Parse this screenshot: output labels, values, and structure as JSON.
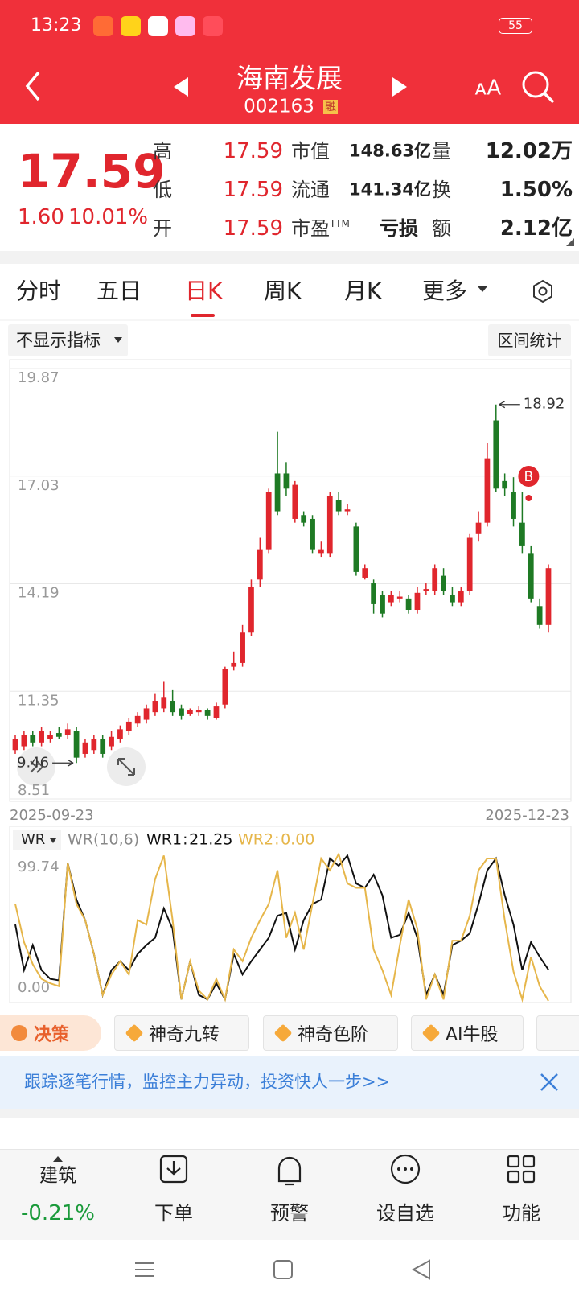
{
  "status_bar": {
    "time": "13:23",
    "battery": "55"
  },
  "header": {
    "title": "海南发展",
    "code": "002163",
    "badge": "融"
  },
  "quote": {
    "price": "17.59",
    "change": "1.60",
    "change_pct": "10.01%",
    "fields": [
      {
        "label": "高",
        "value": "17.59"
      },
      {
        "label": "低",
        "value": "17.59"
      },
      {
        "label": "开",
        "value": "17.59"
      },
      {
        "label": "市值",
        "value": "148.63亿"
      },
      {
        "label": "流通",
        "value": "141.34亿"
      },
      {
        "label": "市盈",
        "sup": "TTM",
        "value": "亏损"
      },
      {
        "label": "量",
        "value": "12.02万"
      },
      {
        "label": "换",
        "value": "1.50%"
      },
      {
        "label": "额",
        "value": "2.12亿"
      }
    ]
  },
  "tabs": [
    "分时",
    "五日",
    "日K",
    "周K",
    "月K",
    "更多"
  ],
  "active_tab": 2,
  "indicator_selector": "不显示指标",
  "range_stats": "区间统计",
  "chart_data": [
    {
      "type": "candlestick",
      "categories": [
        "2025-09-23",
        null,
        null,
        null,
        null,
        null,
        null,
        null,
        null,
        null,
        null,
        null,
        null,
        null,
        null,
        null,
        null,
        null,
        null,
        null,
        null,
        null,
        null,
        null,
        null,
        null,
        null,
        null,
        null,
        null,
        null,
        null,
        null,
        null,
        null,
        null,
        null,
        null,
        null,
        null,
        null,
        null,
        null,
        null,
        null,
        null,
        null,
        null,
        null,
        null,
        null,
        null,
        null,
        null,
        null,
        null,
        null,
        null,
        null,
        null,
        null,
        "2025-12-23"
      ],
      "open": [
        9.8,
        9.9,
        10.2,
        10.0,
        10.1,
        10.25,
        10.2,
        10.3,
        9.7,
        9.8,
        10.1,
        9.9,
        10.1,
        10.3,
        10.5,
        10.6,
        10.8,
        10.9,
        11.1,
        10.9,
        10.75,
        10.8,
        10.85,
        10.65,
        11.0,
        12.0,
        12.1,
        12.9,
        14.3,
        15.1,
        17.1,
        17.1,
        15.9,
        16.0,
        15.9,
        15.0,
        15.0,
        16.4,
        16.1,
        15.7,
        14.35,
        14.2,
        13.9,
        13.7,
        13.8,
        13.8,
        13.5,
        14.0,
        14.0,
        14.4,
        13.9,
        13.7,
        14.0,
        15.5,
        15.8,
        18.5,
        16.9,
        16.6,
        15.8,
        15.0,
        13.6,
        13.1
      ],
      "high": [
        10.2,
        10.3,
        10.3,
        10.4,
        10.3,
        10.4,
        10.5,
        10.4,
        10.1,
        10.2,
        10.2,
        10.3,
        10.45,
        10.65,
        10.8,
        11.0,
        11.3,
        11.6,
        11.4,
        11.0,
        10.9,
        10.95,
        10.9,
        11.05,
        12.0,
        12.4,
        13.1,
        14.3,
        15.4,
        16.7,
        18.2,
        17.4,
        16.9,
        16.1,
        16.0,
        15.3,
        16.6,
        16.6,
        16.3,
        15.8,
        14.7,
        14.3,
        14.0,
        14.0,
        14.0,
        13.9,
        14.1,
        14.2,
        14.7,
        14.6,
        14.1,
        14.1,
        15.5,
        16.1,
        17.9,
        18.92,
        17.1,
        17.0,
        16.6,
        15.2,
        13.8,
        14.7
      ],
      "low": [
        9.7,
        9.8,
        9.9,
        9.9,
        10.0,
        10.1,
        10.1,
        9.46,
        9.6,
        9.7,
        9.6,
        9.8,
        10.0,
        10.2,
        10.4,
        10.5,
        10.7,
        10.8,
        10.7,
        10.6,
        10.7,
        10.7,
        10.6,
        10.6,
        10.9,
        11.9,
        12.0,
        12.8,
        14.1,
        15.0,
        16.0,
        16.5,
        15.8,
        15.7,
        15.0,
        14.9,
        14.9,
        16.0,
        16.0,
        14.4,
        14.3,
        13.4,
        13.3,
        13.6,
        13.7,
        13.4,
        13.4,
        13.9,
        13.9,
        13.9,
        13.6,
        13.6,
        13.9,
        15.3,
        15.7,
        16.6,
        16.5,
        15.7,
        15.0,
        13.7,
        13.0,
        12.9
      ],
      "close": [
        10.1,
        10.2,
        10.0,
        10.3,
        10.2,
        10.15,
        10.35,
        9.6,
        10.0,
        10.1,
        9.7,
        10.15,
        10.35,
        10.55,
        10.7,
        10.9,
        11.1,
        11.2,
        10.8,
        10.7,
        10.85,
        10.85,
        10.7,
        10.95,
        11.95,
        12.1,
        12.9,
        14.1,
        15.1,
        16.6,
        16.1,
        16.7,
        16.8,
        15.8,
        15.1,
        15.1,
        16.5,
        16.1,
        16.15,
        14.5,
        14.6,
        13.65,
        13.4,
        13.9,
        13.85,
        13.5,
        13.95,
        14.05,
        14.6,
        14.0,
        13.7,
        14.0,
        15.4,
        15.8,
        17.5,
        16.7,
        16.7,
        15.9,
        15.2,
        13.8,
        13.1,
        14.6
      ],
      "up_color": "#e0262d",
      "down_color": "#1e7a24",
      "ylim": [
        8.51,
        19.87
      ],
      "yticks": [
        19.87,
        17.03,
        14.19,
        11.35,
        8.51
      ],
      "max_label": "18.92",
      "min_label": "9.46",
      "signal": {
        "text": "B",
        "index": 58
      }
    },
    {
      "type": "line",
      "title": "WR",
      "subtitle": "WR(10,6)",
      "ylim": [
        0,
        99.74
      ],
      "yticks": [
        99.74,
        {
          "value": 0,
          "label": "0.00"
        }
      ],
      "series": [
        {
          "name": "WR1",
          "color": "#111111",
          "last_label": "21.25",
          "values": [
            52,
            21,
            38,
            21,
            15,
            14,
            94,
            69,
            55,
            32,
            4,
            21,
            27,
            21,
            32,
            38,
            43,
            63,
            49,
            1,
            27,
            4,
            1,
            12,
            1,
            32,
            18,
            27,
            35,
            43,
            58,
            60,
            35,
            55,
            66,
            69,
            97,
            92,
            99,
            80,
            77,
            86,
            72,
            43,
            45,
            60,
            43,
            4,
            18,
            4,
            38,
            41,
            46,
            66,
            89,
            97,
            72,
            52,
            21,
            40,
            30,
            21.25
          ]
        },
        {
          "name": "WR2",
          "color": "#e6b64a",
          "last_label": "0.00",
          "values": [
            66,
            40,
            25,
            15,
            12,
            10,
            94,
            66,
            55,
            32,
            4,
            18,
            27,
            18,
            55,
            52,
            83,
            99,
            55,
            1,
            27,
            7,
            1,
            15,
            1,
            35,
            27,
            43,
            55,
            66,
            89,
            43,
            60,
            35,
            66,
            97,
            89,
            100,
            80,
            77,
            77,
            35,
            21,
            4,
            38,
            69,
            49,
            1,
            18,
            1,
            41,
            41,
            58,
            89,
            97,
            97,
            55,
            20,
            1,
            30,
            10,
            0
          ]
        }
      ]
    }
  ],
  "features": [
    "决策",
    "神奇九转",
    "神奇色阶",
    "AI牛股"
  ],
  "banner": "跟踪逐笔行情，监控主力异动，投资快人一步>>",
  "bottom_nav": {
    "sector": {
      "name": "建筑",
      "change": "-0.21%"
    },
    "items": [
      "下单",
      "预警",
      "设自选",
      "功能"
    ]
  }
}
